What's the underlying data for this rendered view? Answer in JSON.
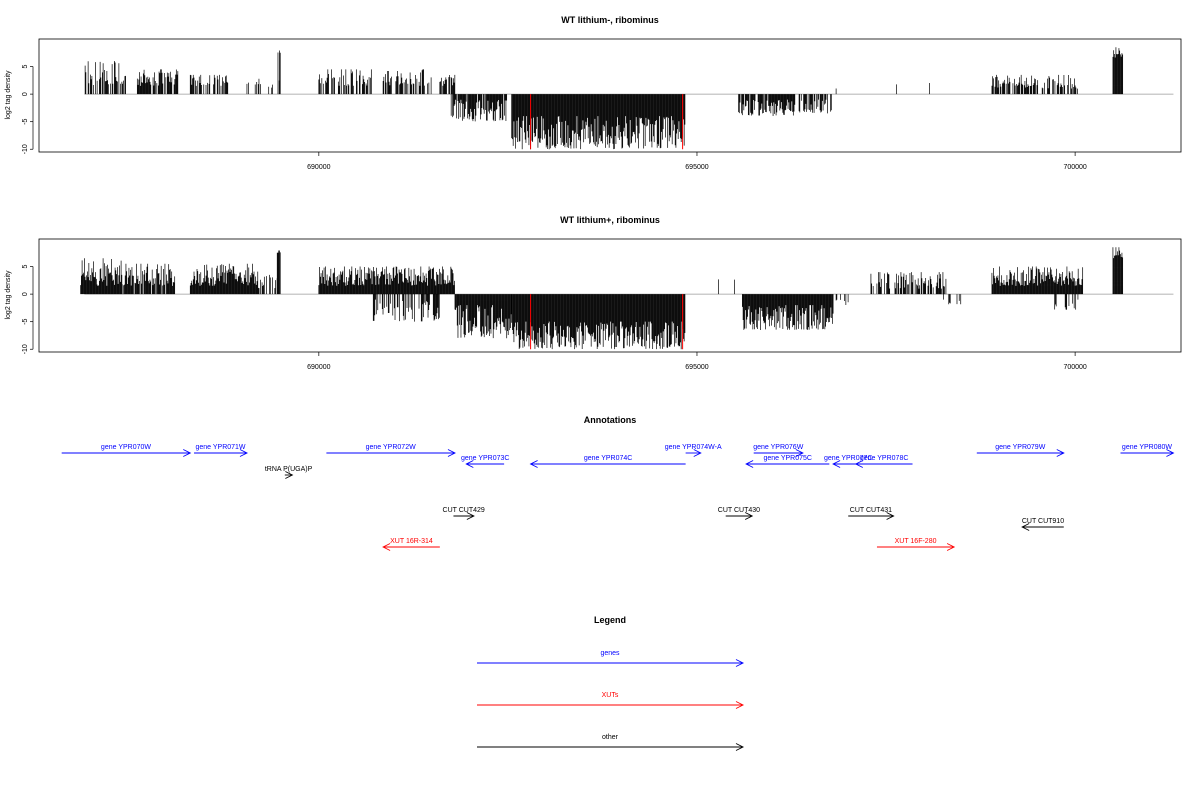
{
  "colors": {
    "gene": "#0000ff",
    "xut": "#ff0000",
    "other": "#000000",
    "axis": "#000000",
    "baseline": "#999999"
  },
  "chart_data": [
    {
      "type": "bar",
      "title": "WT lithium-, ribominus",
      "ylabel": "log2 tag density",
      "xlim": [
        686300,
        701400
      ],
      "ylim": [
        -10.5,
        10
      ],
      "x_ticks": [
        690000,
        695000,
        700000
      ],
      "x_tick_labels": [
        "690000",
        "695000",
        "700000"
      ],
      "y_ticks": [
        -10,
        -5,
        0,
        5
      ],
      "y_tick_labels": [
        "-10",
        "-5",
        "0",
        "5"
      ],
      "highlight_x": [
        692800,
        694810
      ],
      "highlight_ymin": -10,
      "segments": [
        {
          "x0": 686900,
          "x1": 687450,
          "lo": 1.5,
          "hi": 6.0,
          "density": 0.7,
          "seed": 11
        },
        {
          "x0": 687600,
          "x1": 688150,
          "lo": 1.5,
          "hi": 4.5,
          "density": 0.8,
          "seed": 12
        },
        {
          "x0": 688300,
          "x1": 688800,
          "lo": 1.5,
          "hi": 3.5,
          "density": 0.6,
          "seed": 13
        },
        {
          "x0": 689000,
          "x1": 689500,
          "lo": 1.0,
          "hi": 3.0,
          "density": 0.2,
          "seed": 14
        },
        {
          "x0": 689450,
          "x1": 689500,
          "lo": 7.5,
          "hi": 8.0,
          "density": 0.6,
          "seed": 15
        },
        {
          "x0": 690000,
          "x1": 690700,
          "lo": 1.5,
          "hi": 4.5,
          "density": 0.6,
          "seed": 16
        },
        {
          "x0": 690850,
          "x1": 691500,
          "lo": 1.5,
          "hi": 4.5,
          "density": 0.6,
          "seed": 17
        },
        {
          "x0": 691600,
          "x1": 691800,
          "lo": 1.5,
          "hi": 3.5,
          "density": 0.7,
          "seed": 18
        },
        {
          "x0": 691750,
          "x1": 692500,
          "lo": -5.0,
          "hi": -1.0,
          "density": 0.9,
          "seed": 19
        },
        {
          "x0": 692550,
          "x1": 694850,
          "lo": -10.0,
          "hi": -4.0,
          "density": 1.0,
          "seed": 20
        },
        {
          "x0": 695550,
          "x1": 696300,
          "lo": -4.0,
          "hi": -1.0,
          "density": 0.8,
          "seed": 21
        },
        {
          "x0": 696350,
          "x1": 696800,
          "lo": -3.5,
          "hi": -1.0,
          "density": 0.6,
          "seed": 22
        },
        {
          "x0": 696800,
          "x1": 696900,
          "lo": 1.0,
          "hi": 1.5,
          "density": 0.1,
          "seed": 23
        },
        {
          "x0": 697600,
          "x1": 698300,
          "lo": 1.0,
          "hi": 3.5,
          "density": 0.05,
          "seed": 24
        },
        {
          "x0": 698900,
          "x1": 700050,
          "lo": 1.0,
          "hi": 3.5,
          "density": 0.6,
          "seed": 25
        },
        {
          "x0": 700500,
          "x1": 700630,
          "lo": 6.5,
          "hi": 8.5,
          "density": 1.0,
          "seed": 26
        }
      ]
    },
    {
      "type": "bar",
      "title": "WT lithium+, ribominus",
      "ylabel": "log2 tag density",
      "xlim": [
        686300,
        701400
      ],
      "ylim": [
        -10.5,
        10
      ],
      "x_ticks": [
        690000,
        695000,
        700000
      ],
      "x_tick_labels": [
        "690000",
        "695000",
        "700000"
      ],
      "y_ticks": [
        -10,
        -5,
        0,
        5
      ],
      "y_tick_labels": [
        "-10",
        "-5",
        "0",
        "5"
      ],
      "highlight_x": [
        692800,
        694810
      ],
      "highlight_ymin": -10,
      "segments": [
        {
          "x0": 686850,
          "x1": 687400,
          "lo": 1.5,
          "hi": 6.5,
          "density": 1.0,
          "seed": 31
        },
        {
          "x0": 687400,
          "x1": 688100,
          "lo": 1.5,
          "hi": 5.5,
          "density": 0.9,
          "seed": 32
        },
        {
          "x0": 688300,
          "x1": 689200,
          "lo": 1.5,
          "hi": 5.5,
          "density": 1.0,
          "seed": 33
        },
        {
          "x0": 689200,
          "x1": 689450,
          "lo": 1.0,
          "hi": 3.5,
          "density": 0.6,
          "seed": 34
        },
        {
          "x0": 689450,
          "x1": 689500,
          "lo": 7.5,
          "hi": 8.0,
          "density": 0.6,
          "seed": 35
        },
        {
          "x0": 690000,
          "x1": 691800,
          "lo": 1.5,
          "hi": 5.0,
          "density": 1.0,
          "seed": 36
        },
        {
          "x0": 690700,
          "x1": 691600,
          "lo": -5.0,
          "hi": -1.0,
          "density": 0.6,
          "seed": 37
        },
        {
          "x0": 691800,
          "x1": 692550,
          "lo": -8.0,
          "hi": -2.0,
          "density": 1.0,
          "seed": 38
        },
        {
          "x0": 692550,
          "x1": 694850,
          "lo": -10.0,
          "hi": -5.0,
          "density": 1.0,
          "seed": 39
        },
        {
          "x0": 694850,
          "x1": 695500,
          "lo": 1.0,
          "hi": 3.5,
          "density": 0.05,
          "seed": 40
        },
        {
          "x0": 695600,
          "x1": 696800,
          "lo": -6.5,
          "hi": -2.0,
          "density": 1.0,
          "seed": 41
        },
        {
          "x0": 696800,
          "x1": 697000,
          "lo": -2.0,
          "hi": -1.0,
          "density": 0.3,
          "seed": 42
        },
        {
          "x0": 697300,
          "x1": 698300,
          "lo": 1.0,
          "hi": 4.0,
          "density": 0.6,
          "seed": 43
        },
        {
          "x0": 698200,
          "x1": 698500,
          "lo": -2.0,
          "hi": -1.0,
          "density": 0.2,
          "seed": 44
        },
        {
          "x0": 698900,
          "x1": 700100,
          "lo": 1.5,
          "hi": 5.0,
          "density": 1.0,
          "seed": 45
        },
        {
          "x0": 699700,
          "x1": 700100,
          "lo": -3.0,
          "hi": -1.0,
          "density": 0.3,
          "seed": 46
        },
        {
          "x0": 700500,
          "x1": 700630,
          "lo": 6.5,
          "hi": 8.5,
          "density": 1.0,
          "seed": 47
        }
      ]
    }
  ],
  "annotations": {
    "title": "Annotations",
    "features": [
      {
        "label": "gene YPR070W",
        "category": "gene",
        "start": 686600,
        "end": 688300,
        "strand": "+",
        "row": 0
      },
      {
        "label": "gene YPR071W",
        "category": "gene",
        "start": 688350,
        "end": 689050,
        "strand": "+",
        "row": 0
      },
      {
        "label": "gene YPR072W",
        "category": "gene",
        "start": 690100,
        "end": 691800,
        "strand": "+",
        "row": 0
      },
      {
        "label": "gene YPR073C",
        "category": "gene",
        "start": 691950,
        "end": 692450,
        "strand": "-",
        "row": 1
      },
      {
        "label": "gene YPR074C",
        "category": "gene",
        "start": 692800,
        "end": 694850,
        "strand": "-",
        "row": 1
      },
      {
        "label": "gene YPR074W-A",
        "category": "gene",
        "start": 694850,
        "end": 695050,
        "strand": "+",
        "row": 0
      },
      {
        "label": "gene YPR075C",
        "category": "gene",
        "start": 695650,
        "end": 696750,
        "strand": "-",
        "row": 1
      },
      {
        "label": "gene YPR076W",
        "category": "gene",
        "start": 695750,
        "end": 696400,
        "strand": "+",
        "row": 0
      },
      {
        "label": "gene YPR077C",
        "category": "gene",
        "start": 696800,
        "end": 697200,
        "strand": "-",
        "row": 1
      },
      {
        "label": "gene YPR078C",
        "category": "gene",
        "start": 697100,
        "end": 697850,
        "strand": "-",
        "row": 1
      },
      {
        "label": "gene YPR079W",
        "category": "gene",
        "start": 698700,
        "end": 699850,
        "strand": "+",
        "row": 0
      },
      {
        "label": "gene YPR080W",
        "category": "gene",
        "start": 700600,
        "end": 701300,
        "strand": "+",
        "row": 0
      },
      {
        "label": "tRNA P(UGA)P",
        "category": "other",
        "start": 689550,
        "end": 689650,
        "strand": "+",
        "row": 2
      },
      {
        "label": "CUT CUT429",
        "category": "other",
        "start": 691780,
        "end": 692050,
        "strand": "+",
        "row": 4
      },
      {
        "label": "CUT CUT430",
        "category": "other",
        "start": 695380,
        "end": 695730,
        "strand": "+",
        "row": 4
      },
      {
        "label": "CUT CUT431",
        "category": "other",
        "start": 697000,
        "end": 697600,
        "strand": "+",
        "row": 4
      },
      {
        "label": "CUT CUT910",
        "category": "other",
        "start": 699300,
        "end": 699850,
        "strand": "-",
        "row": 5
      },
      {
        "label": "XUT 16R-314",
        "category": "xut",
        "start": 690850,
        "end": 691600,
        "strand": "-",
        "row": 6
      },
      {
        "label": "XUT 16F-280",
        "category": "xut",
        "start": 697380,
        "end": 698400,
        "strand": "+",
        "row": 6
      }
    ]
  },
  "legend": {
    "title": "Legend",
    "items": [
      {
        "label": "genes",
        "category": "gene"
      },
      {
        "label": "XUTs",
        "category": "xut"
      },
      {
        "label": "other",
        "category": "other"
      }
    ]
  }
}
